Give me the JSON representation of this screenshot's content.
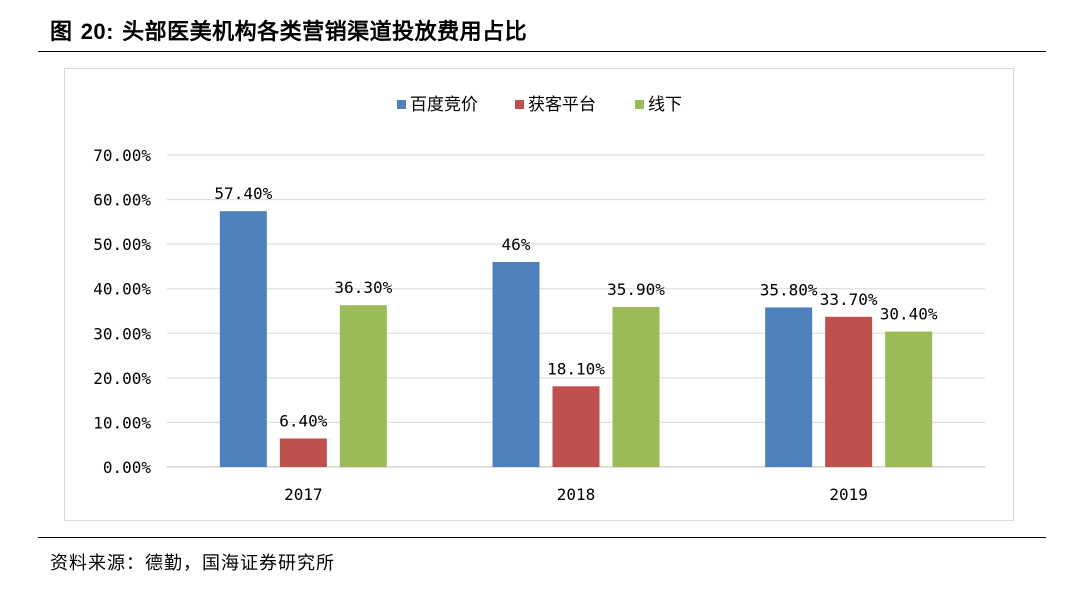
{
  "header": {
    "prefix": "图",
    "number": "20:",
    "title": "头部医美机构各类营销渠道投放费用占比"
  },
  "footer": {
    "source": "资料来源：德勤，国海证券研究所"
  },
  "chart_data": {
    "type": "bar",
    "title": "头部医美机构各类营销渠道投放费用占比",
    "categories": [
      "2017",
      "2018",
      "2019"
    ],
    "series": [
      {
        "name": "百度竞价",
        "color": "#4f81bd",
        "values": [
          57.4,
          46,
          35.8
        ],
        "labels": [
          "57.40%",
          "46%",
          "35.80%"
        ]
      },
      {
        "name": "获客平台",
        "color": "#c0504d",
        "values": [
          6.4,
          18.1,
          33.7
        ],
        "labels": [
          "6.40%",
          "18.10%",
          "33.70%"
        ]
      },
      {
        "name": "线下",
        "color": "#9bbb59",
        "values": [
          36.3,
          35.9,
          30.4
        ],
        "labels": [
          "36.30%",
          "35.90%",
          "30.40%"
        ]
      }
    ],
    "ylim": [
      0,
      70
    ],
    "yticks": [
      0,
      10,
      20,
      30,
      40,
      50,
      60,
      70
    ],
    "ytick_labels": [
      "0.00%",
      "10.00%",
      "20.00%",
      "30.00%",
      "40.00%",
      "50.00%",
      "60.00%",
      "70.00%"
    ],
    "xlabel": "",
    "ylabel": "",
    "grid": true,
    "legend_position": "top-center"
  }
}
